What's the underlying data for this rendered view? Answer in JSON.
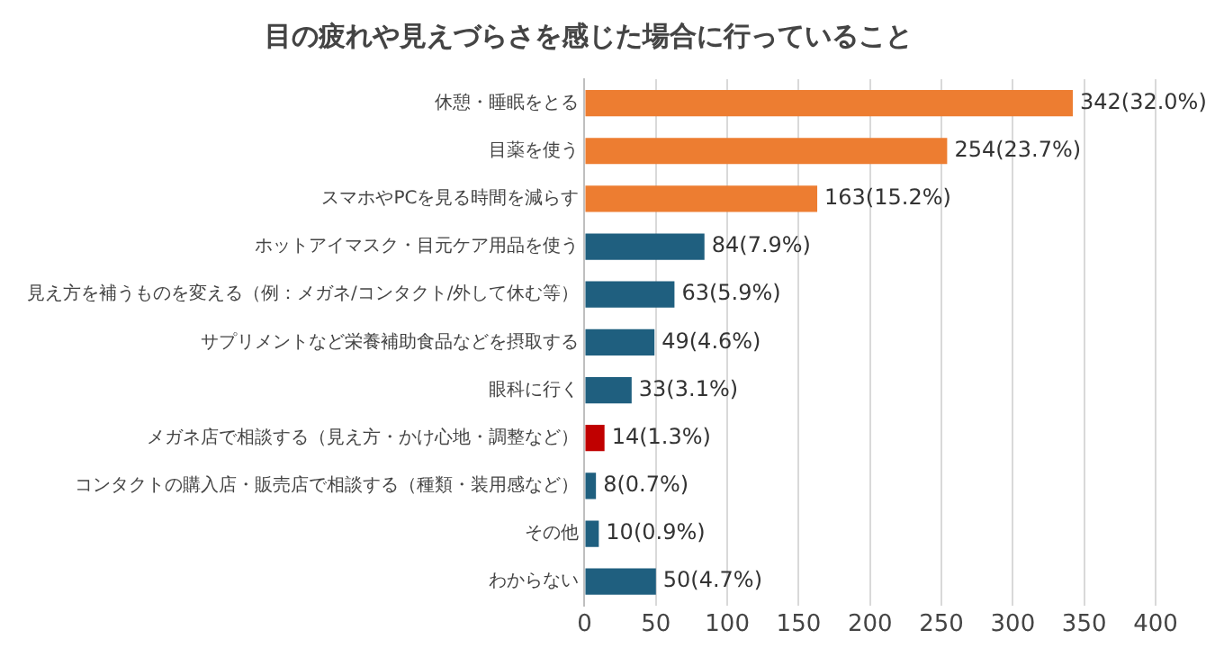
{
  "chart_data": {
    "type": "bar",
    "orientation": "horizontal",
    "title": "目の疲れや見えづらさを感じた場合に行っていること",
    "categories": [
      "休憩・睡眠をとる",
      "目薬を使う",
      "スマホやPCを見る時間を減らす",
      "ホットアイマスク・目元ケア用品を使う",
      "見え方を補うものを変える（例：メガネ/コンタクト/外して休む等）",
      "サプリメントなど栄養補助食品などを摂取する",
      "眼科に行く",
      "メガネ店で相談する（見え方・かけ心地・調整など）",
      "コンタクトの購入店・販売店で相談する（種類・装用感など）",
      "その他",
      "わからない"
    ],
    "values": [
      342,
      254,
      163,
      84,
      63,
      49,
      33,
      14,
      8,
      10,
      50
    ],
    "value_labels": [
      "342(32.0%)",
      "254(23.7%)",
      "163(15.2%)",
      "84(7.9%)",
      "63(5.9%)",
      "49(4.6%)",
      "33(3.1%)",
      "14(1.3%)",
      "8(0.7%)",
      "10(0.9%)",
      "50(4.7%)"
    ],
    "colors": [
      "#ed7d31",
      "#ed7d31",
      "#ed7d31",
      "#1f5f7f",
      "#1f5f7f",
      "#1f5f7f",
      "#1f5f7f",
      "#c00000",
      "#1f5f7f",
      "#1f5f7f",
      "#1f5f7f"
    ],
    "xlim": [
      0,
      400
    ],
    "xticks": [
      0,
      50,
      100,
      150,
      200,
      250,
      300,
      350,
      400
    ],
    "grid": "x",
    "legend": false
  }
}
